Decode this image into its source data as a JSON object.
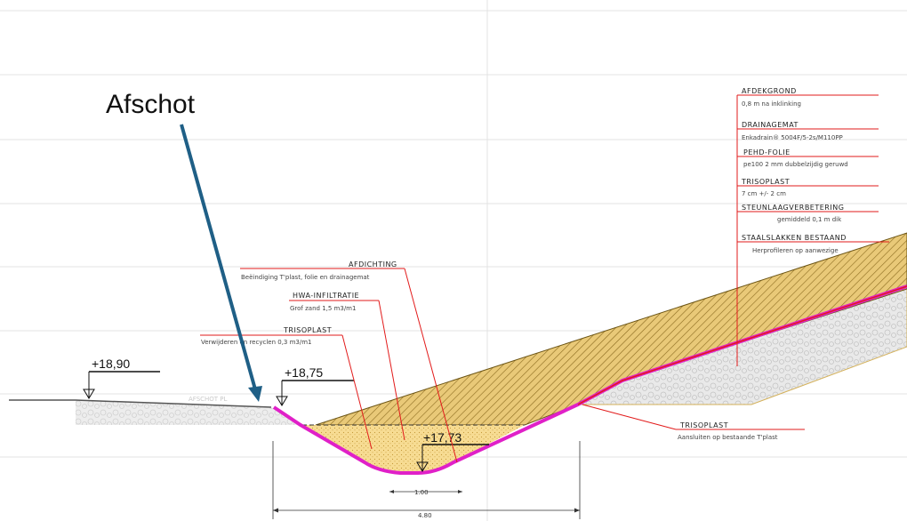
{
  "callout": {
    "title": "Afschot",
    "arrow_color": "#1f5f86"
  },
  "elevations": {
    "left": "+18,90",
    "mid": "+18,75",
    "bottom": "+17,73"
  },
  "dimensions": {
    "inner_width": "1.00",
    "outer_width": "4.80"
  },
  "ghost_label": "AFSCHOT PL",
  "annotations_left": [
    {
      "title": "AFDICHTING",
      "desc": "Beëindiging T'plast, folie en drainagemat"
    },
    {
      "title": "HWA-INFILTRATIE",
      "desc": "Grof zand 1,5 m3/m1"
    },
    {
      "title": "TRISOPLAST",
      "desc": "Verwijderen en recyclen 0,3 m3/m1"
    }
  ],
  "annotations_right": [
    {
      "title": "AFDEKGROND",
      "desc": "0,8 m na inklinking"
    },
    {
      "title": "DRAINAGEMAT",
      "desc": "Enkadrain® 5004F/5-2s/M110PP"
    },
    {
      "title": "PEHD-FOLIE",
      "desc": "pe100 2 mm dubbelzijdig geruwd"
    },
    {
      "title": "TRISOPLAST",
      "desc": "7 cm +/- 2 cm"
    },
    {
      "title": "STEUNLAAGVERBETERING",
      "desc": "gemiddeld 0,1 m dik"
    },
    {
      "title": "STAALSLAKKEN BESTAAND",
      "desc": "Herprofileren op aanwezige"
    }
  ],
  "annotation_bottom": {
    "title": "TRISOPLAST",
    "desc": "Aansluiten op bestaande T'plast"
  },
  "colors": {
    "leader_red": "#e21b1b",
    "trisoplast_magenta": "#e020c8",
    "cover_yellow": "#e7c46a",
    "sand_yellow": "#f6d98a",
    "slag_gray": "#c8c8c8"
  }
}
